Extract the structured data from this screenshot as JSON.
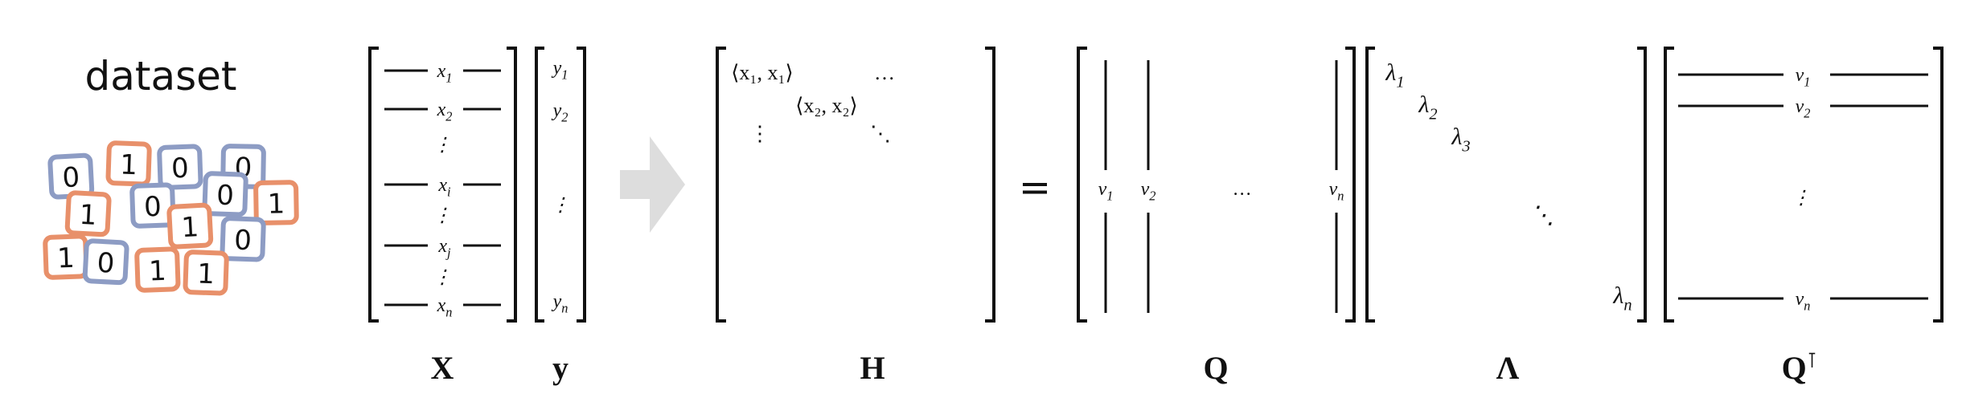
{
  "dataset": {
    "title": "dataset",
    "cards": [
      {
        "digit": "0",
        "color": "blue"
      },
      {
        "digit": "1",
        "color": "orange"
      },
      {
        "digit": "0",
        "color": "blue"
      },
      {
        "digit": "0",
        "color": "blue"
      },
      {
        "digit": "1",
        "color": "orange"
      },
      {
        "digit": "0",
        "color": "blue"
      },
      {
        "digit": "0",
        "color": "blue"
      },
      {
        "digit": "1",
        "color": "orange"
      },
      {
        "digit": "1",
        "color": "orange"
      },
      {
        "digit": "0",
        "color": "blue"
      },
      {
        "digit": "1",
        "color": "orange"
      },
      {
        "digit": "0",
        "color": "blue"
      },
      {
        "digit": "1",
        "color": "orange"
      },
      {
        "digit": "1",
        "color": "orange"
      }
    ],
    "colors": {
      "blue": "#8d9cc4",
      "orange": "#e8906a"
    }
  },
  "X": {
    "label": "X",
    "rows": [
      {
        "base": "x",
        "sub": "1"
      },
      {
        "base": "x",
        "sub": "2"
      },
      {
        "base": "⋮",
        "sub": ""
      },
      {
        "base": "x",
        "sub": "i"
      },
      {
        "base": "⋮",
        "sub": ""
      },
      {
        "base": "x",
        "sub": "j"
      },
      {
        "base": "⋮",
        "sub": ""
      },
      {
        "base": "x",
        "sub": "n"
      }
    ]
  },
  "y": {
    "label": "y",
    "rows": [
      {
        "base": "y",
        "sub": "1"
      },
      {
        "base": "y",
        "sub": "2"
      },
      {
        "base": "⋮",
        "sub": ""
      },
      {
        "base": "y",
        "sub": "n"
      }
    ]
  },
  "arrow_color": "#dddddd",
  "H": {
    "label": "H",
    "entries": [
      {
        "id": "h11",
        "text": "⟨x₁, x₁⟩"
      },
      {
        "id": "hdots",
        "text": "…"
      },
      {
        "id": "h22",
        "text": "⟨x₂, x₂⟩"
      },
      {
        "id": "hvdots",
        "text": "⋮"
      },
      {
        "id": "hddots",
        "text": "⋱"
      }
    ]
  },
  "equals": "=",
  "Q": {
    "label": "Q",
    "columns": [
      {
        "base": "v",
        "sub": "1"
      },
      {
        "base": "v",
        "sub": "2"
      },
      {
        "base": "…",
        "sub": ""
      },
      {
        "base": "v",
        "sub": "n"
      }
    ]
  },
  "Lambda": {
    "label": "Λ",
    "diag": [
      {
        "base": "λ",
        "sub": "1"
      },
      {
        "base": "λ",
        "sub": "2"
      },
      {
        "base": "λ",
        "sub": "3"
      },
      {
        "base": "⋱",
        "sub": ""
      },
      {
        "base": "λ",
        "sub": "n"
      }
    ]
  },
  "QT": {
    "label": "Q",
    "sup": "⊺",
    "rows": [
      {
        "base": "v",
        "sub": "1"
      },
      {
        "base": "v",
        "sub": "2"
      },
      {
        "base": "⋮",
        "sub": ""
      },
      {
        "base": "v",
        "sub": "n"
      }
    ]
  }
}
